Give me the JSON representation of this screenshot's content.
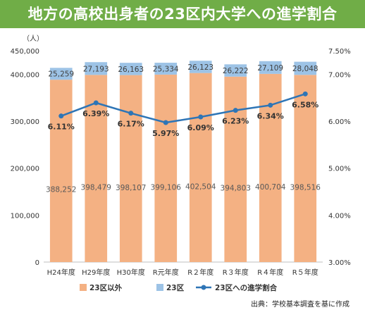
{
  "header": {
    "title": "地方の高校出身者の23区内大学への進学割合"
  },
  "source_note": "出典：学校基本調査を基に作成",
  "colors": {
    "banner": "#70ad47",
    "outside_23": "#f4b183",
    "in_23": "#9dc3e6",
    "ratio_line": "#2e75b6"
  },
  "chart_data": {
    "type": "bar",
    "stacked": true,
    "categories": [
      "H24年度",
      "H29年度",
      "H30年度",
      "R元年度",
      "R２年度",
      "R３年度",
      "R４年度",
      "R５年度"
    ],
    "series": [
      {
        "name": "23区以外",
        "values": [
          388252,
          398479,
          398107,
          399106,
          402504,
          394803,
          400704,
          398516
        ]
      },
      {
        "name": "23区",
        "values": [
          25259,
          27193,
          26163,
          25334,
          26123,
          26222,
          27109,
          28048
        ]
      }
    ],
    "line_series": {
      "name": "23区への進学割合",
      "values": [
        6.11,
        6.39,
        6.17,
        5.97,
        6.09,
        6.23,
        6.34,
        6.58
      ],
      "labels": [
        "6.11%",
        "6.39%",
        "6.17%",
        "5.97%",
        "6.09%",
        "6.23%",
        "6.34%",
        "6.58%"
      ]
    },
    "bar_labels_outside": [
      "388,252",
      "398,479",
      "398,107",
      "399,106",
      "402,504",
      "394,803",
      "400,704",
      "398,516"
    ],
    "bar_labels_in23": [
      "25,259",
      "27,193",
      "26,163",
      "25,334",
      "26,123",
      "26,222",
      "27,109",
      "28,048"
    ],
    "y_left": {
      "unit_label": "（人）",
      "min": 0,
      "max": 450000,
      "ticks": [
        "0",
        "100,000",
        "200,000",
        "300,000",
        "400,000",
        "450,000"
      ],
      "tick_values": [
        0,
        100000,
        200000,
        300000,
        400000,
        450000
      ]
    },
    "y_right": {
      "min": 3.0,
      "max": 7.5,
      "ticks": [
        "3.00%",
        "4.00%",
        "5.00%",
        "6.00%",
        "7.00%",
        "7.50%"
      ],
      "tick_values": [
        3.0,
        4.0,
        5.0,
        6.0,
        7.0,
        7.5
      ]
    },
    "grid": false,
    "legend": {
      "position": "bottom",
      "items": [
        "23区以外",
        "23区",
        "23区への進学割合"
      ]
    }
  }
}
